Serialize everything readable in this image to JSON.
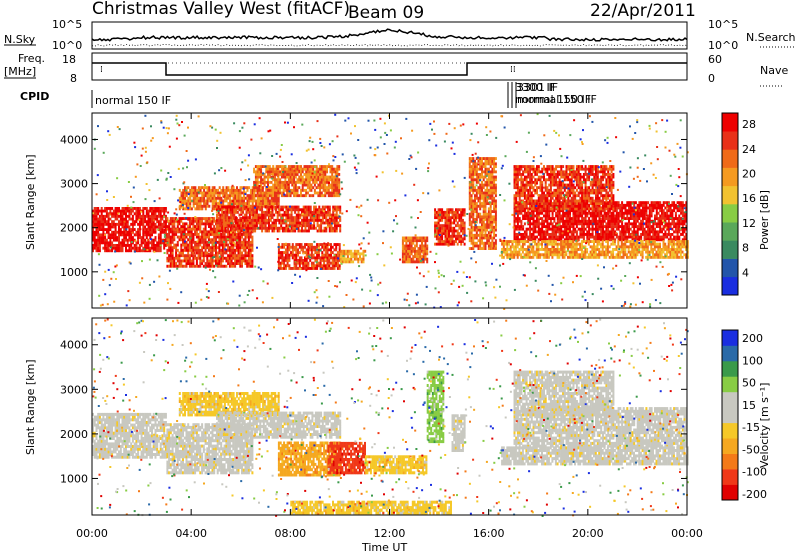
{
  "header": {
    "station": "Christmas Valley West (fitACF)",
    "beam": "Beam 09",
    "date": "22/Apr/2011"
  },
  "top_panels": {
    "nsky_label": "N.Sky",
    "nsky_ticks": [
      "10^5",
      "10^0"
    ],
    "nsearch_label": "N.Search",
    "nsearch_ticks": [
      "10^5",
      "10^0"
    ],
    "freq_label": "Freq.",
    "freq_unit": "[MHz]",
    "freq_ticks": [
      "18",
      "8"
    ],
    "nave_label": "Nave",
    "nave_ticks": [
      "60",
      "0"
    ],
    "cpid_label": "CPID",
    "cpid_text_left": "normal 150 IF",
    "cpid_text_mid_a": "3300 IF",
    "cpid_text_mid_b": "normal 150 IF",
    "cpid_text_mid_c": "3301 IF",
    "cpid_text_mid_d": "mormal 150 IF"
  },
  "colors": {
    "power": [
      "#1a2ee0",
      "#2255aa",
      "#3a8a60",
      "#5aa85a",
      "#88cc44",
      "#f2c230",
      "#f59a20",
      "#f06a18",
      "#e83018",
      "#ee0000"
    ],
    "velocity": [
      "#e00000",
      "#f03818",
      "#f47a18",
      "#f5a820",
      "#f5c828",
      "#c8c8c0",
      "#c8c8c0",
      "#88cc44",
      "#3a9a4a",
      "#2a6aa8",
      "#1a2ee0"
    ]
  },
  "chart_data": [
    {
      "type": "heatmap",
      "title": "Power",
      "ylabel": "Slant Range [km]",
      "xlabel": "Time UT",
      "xlim": [
        0,
        24
      ],
      "ylim": [
        180,
        4600
      ],
      "yticks": [
        "1000",
        "2000",
        "3000",
        "4000"
      ],
      "xticks": [
        "00:00",
        "04:00",
        "08:00",
        "12:00",
        "16:00",
        "20:00",
        "00:00"
      ],
      "colorbar_label": "Power [dB]",
      "colorbar_ticks": [
        "4",
        "8",
        "12",
        "16",
        "20",
        "24",
        "28"
      ],
      "bands": [
        {
          "t0": 0.0,
          "t1": 3.0,
          "r0": 1450,
          "r1": 2450,
          "level": 9
        },
        {
          "t0": 3.0,
          "t1": 6.5,
          "r0": 1100,
          "r1": 2200,
          "level": 8
        },
        {
          "t0": 3.5,
          "t1": 7.5,
          "r0": 2400,
          "r1": 2900,
          "level": 7
        },
        {
          "t0": 5.0,
          "t1": 10.0,
          "r0": 1900,
          "r1": 2500,
          "level": 8
        },
        {
          "t0": 6.5,
          "t1": 10.0,
          "r0": 2700,
          "r1": 3400,
          "level": 7
        },
        {
          "t0": 7.5,
          "t1": 10.0,
          "r0": 1050,
          "r1": 1650,
          "level": 8
        },
        {
          "t0": 10.0,
          "t1": 11.0,
          "r0": 1200,
          "r1": 1500,
          "level": 6
        },
        {
          "t0": 12.5,
          "t1": 13.5,
          "r0": 1200,
          "r1": 1800,
          "level": 7
        },
        {
          "t0": 13.8,
          "t1": 15.0,
          "r0": 1600,
          "r1": 2400,
          "level": 8
        },
        {
          "t0": 15.2,
          "t1": 16.3,
          "r0": 1500,
          "r1": 3600,
          "level": 7
        },
        {
          "t0": 17.0,
          "t1": 24.0,
          "r0": 1700,
          "r1": 2600,
          "level": 9
        },
        {
          "t0": 17.0,
          "t1": 21.0,
          "r0": 2400,
          "r1": 3400,
          "level": 8
        },
        {
          "t0": 16.5,
          "t1": 24.0,
          "r0": 1300,
          "r1": 1700,
          "level": 6
        }
      ]
    },
    {
      "type": "heatmap",
      "title": "Velocity",
      "ylabel": "Slant Range [km]",
      "xlabel": "Time UT",
      "xlim": [
        0,
        24
      ],
      "ylim": [
        180,
        4600
      ],
      "yticks": [
        "1000",
        "2000",
        "3000",
        "4000"
      ],
      "xticks": [
        "00:00",
        "04:00",
        "08:00",
        "12:00",
        "16:00",
        "20:00",
        "00:00"
      ],
      "colorbar_label": "Velocity [m s⁻¹]",
      "colorbar_ticks": [
        "200",
        "100",
        "50",
        "15",
        "-15",
        "-50",
        "-100",
        "-200"
      ],
      "bands": [
        {
          "t0": 0.0,
          "t1": 3.0,
          "r0": 1450,
          "r1": 2450,
          "level": 5
        },
        {
          "t0": 3.0,
          "t1": 6.5,
          "r0": 1100,
          "r1": 2200,
          "level": 5
        },
        {
          "t0": 3.5,
          "t1": 7.5,
          "r0": 2400,
          "r1": 2900,
          "level": 4
        },
        {
          "t0": 5.0,
          "t1": 10.0,
          "r0": 1900,
          "r1": 2500,
          "level": 5
        },
        {
          "t0": 7.5,
          "t1": 10.0,
          "r0": 1050,
          "r1": 1800,
          "level": 3
        },
        {
          "t0": 9.5,
          "t1": 11.0,
          "r0": 1100,
          "r1": 1800,
          "level": 1
        },
        {
          "t0": 11.0,
          "t1": 13.5,
          "r0": 1100,
          "r1": 1500,
          "level": 4
        },
        {
          "t0": 13.5,
          "t1": 14.2,
          "r0": 1800,
          "r1": 3400,
          "level": 7
        },
        {
          "t0": 14.5,
          "t1": 15.0,
          "r0": 1600,
          "r1": 2400,
          "level": 5
        },
        {
          "t0": 8.0,
          "t1": 14.5,
          "r0": 200,
          "r1": 500,
          "level": 4
        },
        {
          "t0": 17.0,
          "t1": 24.0,
          "r0": 1700,
          "r1": 2600,
          "level": 5
        },
        {
          "t0": 17.0,
          "t1": 21.0,
          "r0": 2400,
          "r1": 3400,
          "level": 5
        },
        {
          "t0": 16.5,
          "t1": 24.0,
          "r0": 1300,
          "r1": 1700,
          "level": 5
        }
      ]
    }
  ]
}
